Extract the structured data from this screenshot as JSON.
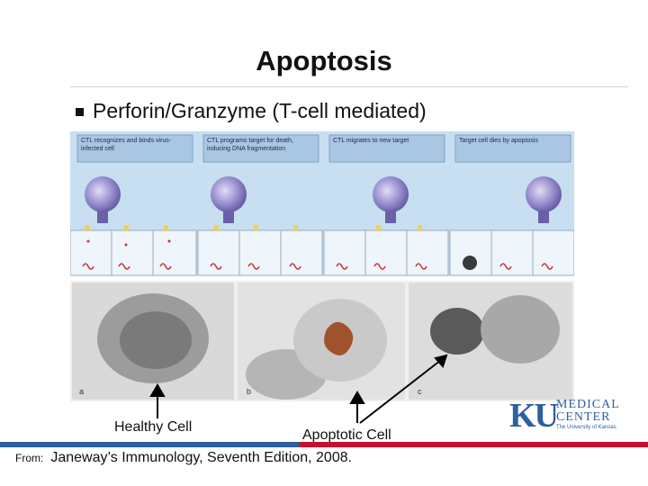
{
  "slide": {
    "title": "Apoptosis",
    "bullet": "Perforin/Granzyme (T-cell mediated)"
  },
  "figure": {
    "panels": [
      "CTL recognizes and binds virus-infected cell",
      "CTL programs target for death, inducing DNA fragmentation",
      "CTL migrates to new target",
      "Target cell dies by apoptosis"
    ],
    "micrograph_letters": [
      "a",
      "b",
      "c"
    ]
  },
  "labels": {
    "healthy": "Healthy Cell",
    "apoptotic": "Apoptotic Cell"
  },
  "source": {
    "prefix": "From:",
    "text": "Janeway’s Immunology, Seventh Edition, 2008."
  },
  "logo": {
    "mark": "KU",
    "line1": "MEDICAL",
    "line2": "CENTER",
    "line3": "The University of Kansas"
  },
  "colors": {
    "panel_bg": "#c7dff0",
    "panel_header": "#a9c6e3",
    "ctl_cell": "#8e86c6",
    "ku_blue": "#2d5fa3",
    "ku_red": "#c8102e"
  }
}
